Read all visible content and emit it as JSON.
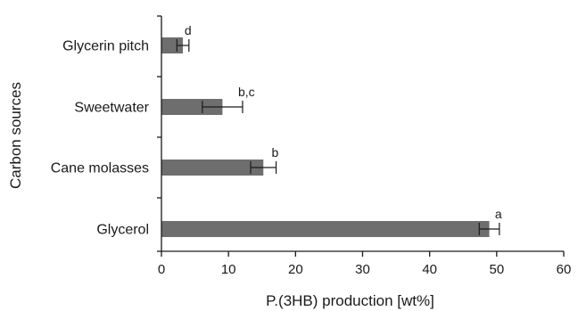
{
  "chart_data": {
    "type": "bar",
    "orientation": "horizontal",
    "categories": [
      "Glycerin pitch",
      "Sweetwater",
      "Cane molasses",
      "Glycerol"
    ],
    "values": [
      3.2,
      9.1,
      15.2,
      48.9
    ],
    "errors": [
      0.9,
      3.0,
      1.9,
      1.5
    ],
    "significance": [
      "d",
      "b,c",
      "b",
      "a"
    ],
    "xlabel": "P.(3HB) production [wt%]",
    "ylabel": "Carbon sources",
    "xlim": [
      0,
      60
    ],
    "xticks": [
      0,
      10,
      20,
      30,
      40,
      50,
      60
    ],
    "grid": false,
    "bar_color": "#6e6e6e"
  }
}
